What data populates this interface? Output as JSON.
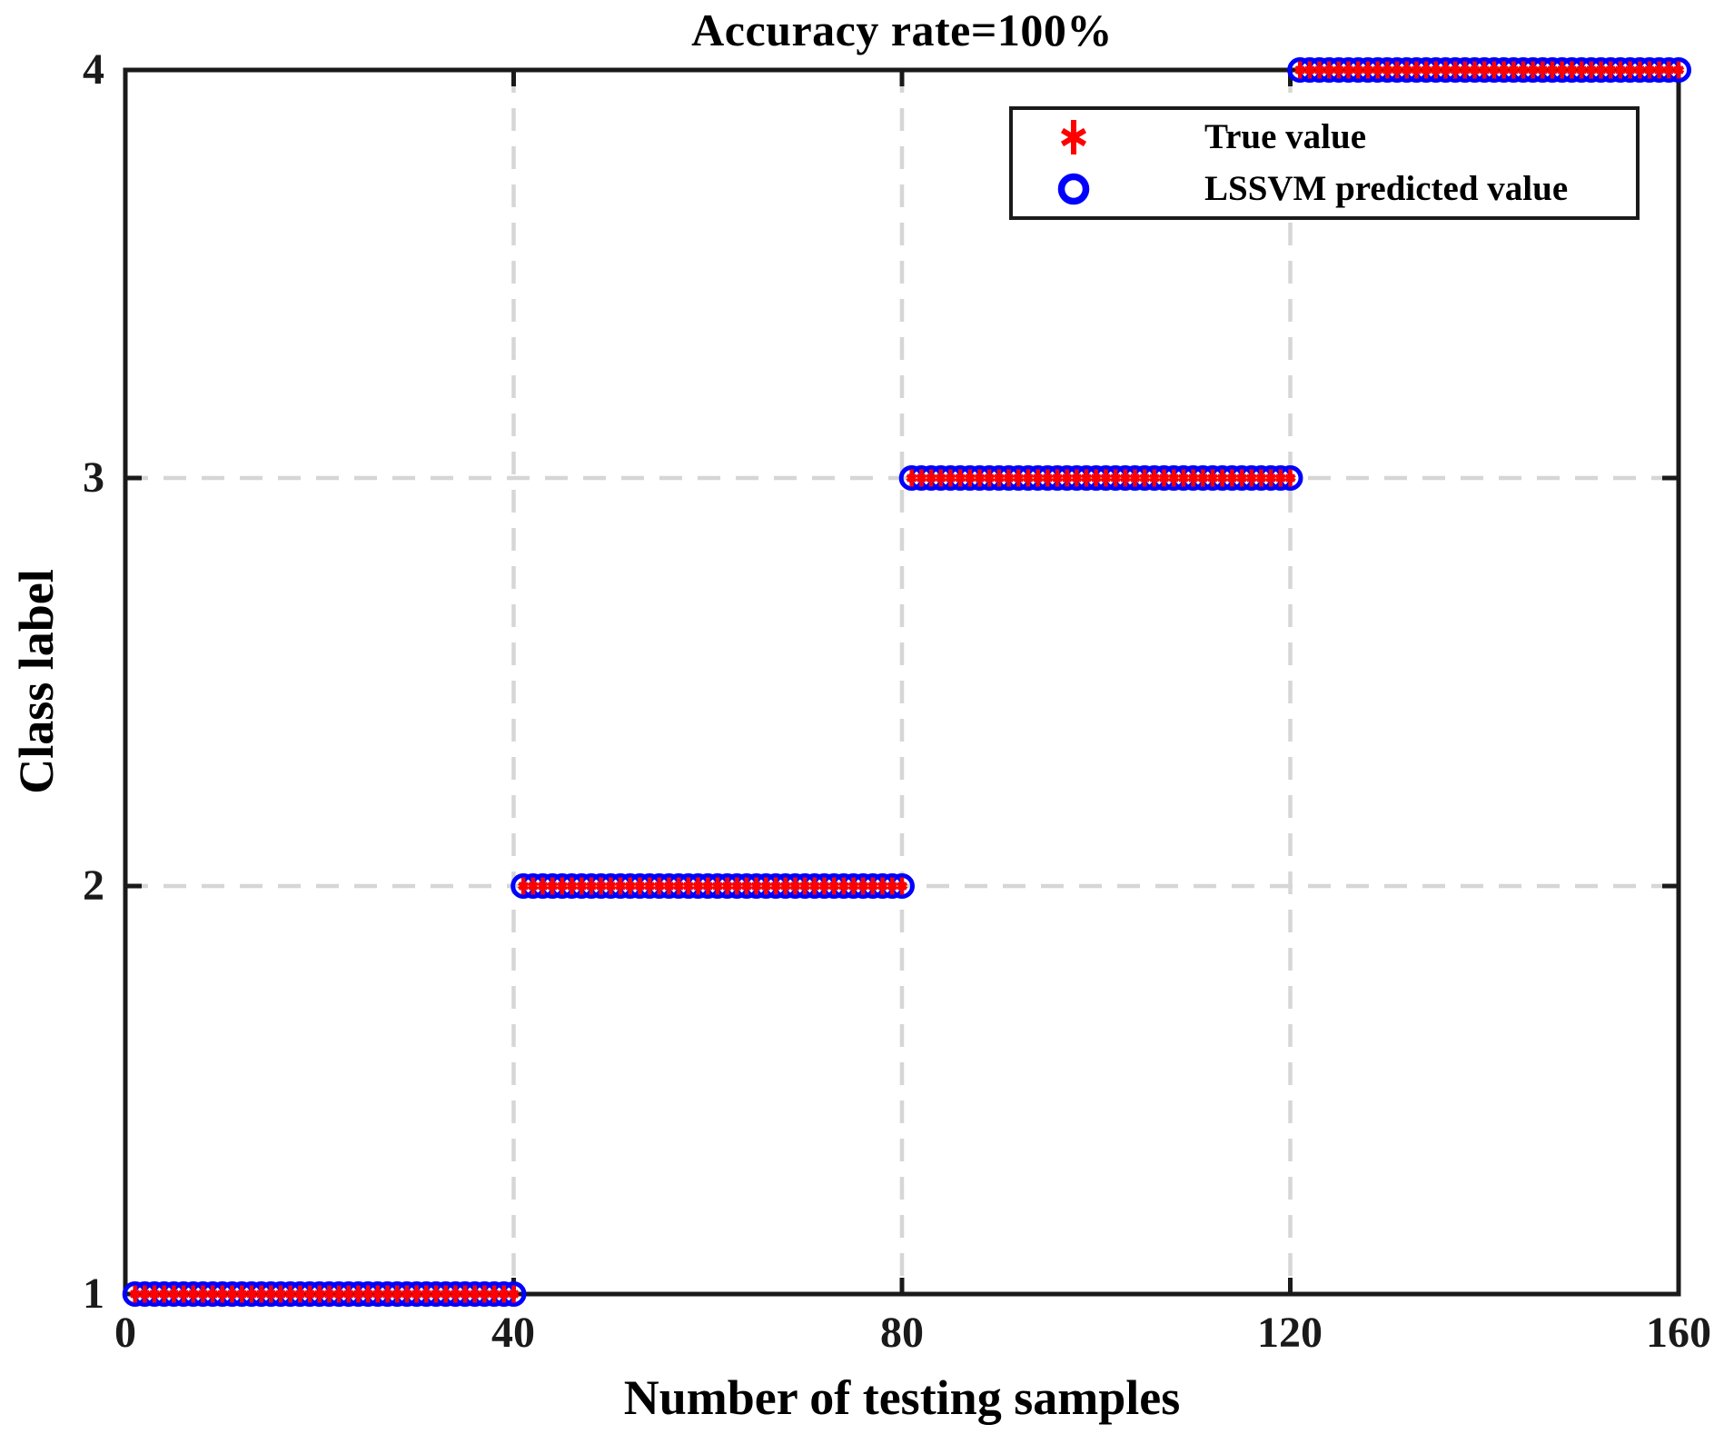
{
  "figure": {
    "title": "Accuracy rate=100%",
    "xlabel": "Number of testing samples",
    "ylabel": "Class label"
  },
  "colors": {
    "true_marker": "#ff0000",
    "predicted_marker": "#0000ff",
    "grid": "#d6d6d6",
    "axis": "#1a1a1a",
    "background": "#ffffff"
  },
  "legend": {
    "items": [
      {
        "label": "True value",
        "marker": "red-asterisk",
        "color": "#ff0000"
      },
      {
        "label": "LSSVM predicted value",
        "marker": "blue-circle",
        "color": "#0000ff"
      }
    ]
  },
  "chart_data": {
    "type": "scatter",
    "title": "Accuracy rate=100%",
    "xlabel": "Number of testing samples",
    "ylabel": "Class label",
    "xlim": [
      0,
      160
    ],
    "ylim": [
      1,
      4
    ],
    "xticks": [
      0,
      40,
      80,
      120,
      160
    ],
    "yticks": [
      1,
      2,
      3,
      4
    ],
    "xtick_labels": [
      "0",
      "40",
      "80",
      "120",
      "160"
    ],
    "ytick_labels": [
      "1",
      "2",
      "3",
      "4"
    ],
    "grid": "dashed gray, at x=40,80,120 and y=2,3",
    "legend_position": "upper right inside axes",
    "segments": [
      {
        "class_label": 1,
        "sample_start": 1,
        "sample_end": 40
      },
      {
        "class_label": 2,
        "sample_start": 41,
        "sample_end": 80
      },
      {
        "class_label": 3,
        "sample_start": 81,
        "sample_end": 120
      },
      {
        "class_label": 4,
        "sample_start": 121,
        "sample_end": 160
      }
    ],
    "series": [
      {
        "name": "True value",
        "marker": "asterisk",
        "color": "#ff0000",
        "points": "x = sample index 1..160, y = class_label from segments"
      },
      {
        "name": "LSSVM predicted value",
        "marker": "open-circle",
        "color": "#0000ff",
        "points": "identical to True value for all 160 samples (accuracy 100%)"
      }
    ]
  }
}
